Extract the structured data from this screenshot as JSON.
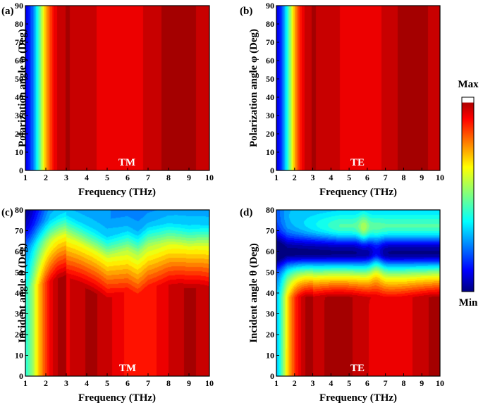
{
  "chart_data": [
    {
      "type": "heatmap",
      "panel_label": "(a)",
      "mode": "TM",
      "xlabel": "Frequency (THz)",
      "ylabel": "Polarization angle φ (Deg)",
      "xlim": [
        1,
        10
      ],
      "ylim": [
        0,
        90
      ],
      "xticks": [
        "1",
        "2",
        "3",
        "4",
        "5",
        "6",
        "7",
        "8",
        "9",
        "10"
      ],
      "yticks": [
        "0",
        "10",
        "20",
        "30",
        "40",
        "50",
        "60",
        "70",
        "80",
        "90"
      ],
      "field": "uniform_in_angle",
      "profile_x": [
        1.0,
        1.2,
        1.4,
        1.6,
        1.8,
        2.0,
        2.2,
        2.4,
        2.6,
        3.0,
        3.5,
        4.0,
        4.5,
        5.0,
        5.5,
        6.0,
        6.5,
        7.0,
        7.5,
        8.0,
        8.5,
        9.0,
        9.5,
        10.0
      ],
      "profile_value": [
        0.1,
        0.15,
        0.25,
        0.4,
        0.55,
        0.7,
        0.8,
        0.88,
        0.92,
        0.95,
        0.94,
        0.93,
        0.91,
        0.89,
        0.88,
        0.89,
        0.9,
        0.92,
        0.94,
        0.96,
        0.97,
        0.96,
        0.94,
        0.92
      ]
    },
    {
      "type": "heatmap",
      "panel_label": "(b)",
      "mode": "TE",
      "xlabel": "Frequency (THz)",
      "ylabel": "Polarization angle φ (Deg)",
      "xlim": [
        1,
        10
      ],
      "ylim": [
        0,
        90
      ],
      "xticks": [
        "1",
        "2",
        "3",
        "4",
        "5",
        "6",
        "7",
        "8",
        "9",
        "10"
      ],
      "yticks": [
        "0",
        "10",
        "20",
        "30",
        "40",
        "50",
        "60",
        "70",
        "80",
        "90"
      ],
      "field": "uniform_in_angle",
      "profile_x": [
        1.0,
        1.2,
        1.4,
        1.6,
        1.8,
        2.0,
        2.2,
        2.4,
        2.6,
        3.0,
        3.5,
        4.0,
        4.5,
        5.0,
        5.5,
        6.0,
        6.5,
        7.0,
        7.5,
        8.0,
        8.5,
        9.0,
        9.5,
        10.0
      ],
      "profile_value": [
        0.1,
        0.15,
        0.25,
        0.4,
        0.55,
        0.7,
        0.8,
        0.88,
        0.92,
        0.95,
        0.94,
        0.93,
        0.91,
        0.89,
        0.88,
        0.89,
        0.9,
        0.92,
        0.94,
        0.96,
        0.97,
        0.96,
        0.94,
        0.92
      ]
    },
    {
      "type": "heatmap",
      "panel_label": "(c)",
      "mode": "TM",
      "xlabel": "Frequency (THz)",
      "ylabel": "Incident angle θ (Deg)",
      "xlim": [
        1,
        10
      ],
      "ylim": [
        0,
        80
      ],
      "xticks": [
        "1",
        "2",
        "3",
        "4",
        "5",
        "6",
        "7",
        "8",
        "9",
        "10"
      ],
      "yticks": [
        "0",
        "10",
        "20",
        "30",
        "40",
        "50",
        "60",
        "70",
        "80"
      ],
      "field": "tm_incidence",
      "low_frequency_profile_x": [
        1.0,
        1.2,
        1.4,
        1.6,
        1.8,
        2.0,
        2.2,
        2.4,
        2.6,
        3.0
      ],
      "low_frequency_profile_value": [
        0.4,
        0.46,
        0.55,
        0.65,
        0.74,
        0.82,
        0.88,
        0.92,
        0.95,
        0.96
      ],
      "decay_angle_x": [
        1,
        2,
        3,
        4,
        5,
        6,
        6.5,
        7,
        8,
        9,
        10
      ],
      "decay_angle_value": [
        62,
        65,
        68,
        62,
        57,
        61,
        59,
        63,
        64,
        62,
        63
      ]
    },
    {
      "type": "heatmap",
      "panel_label": "(d)",
      "mode": "TE",
      "xlabel": "Frequency (THz)",
      "ylabel": "Incident angle θ (Deg)",
      "xlim": [
        1,
        10
      ],
      "ylim": [
        0,
        80
      ],
      "xticks": [
        "1",
        "2",
        "3",
        "4",
        "5",
        "6",
        "7",
        "8",
        "9",
        "10"
      ],
      "yticks": [
        "0",
        "10",
        "20",
        "30",
        "40",
        "50",
        "60",
        "70",
        "80"
      ],
      "field": "te_incidence",
      "min_band_angle": 60,
      "high_band_angle": 71,
      "low_frequency_profile_x": [
        1.0,
        1.2,
        1.4,
        1.6,
        1.8,
        2.0,
        2.2,
        2.4,
        2.6,
        3.0
      ],
      "low_frequency_profile_value": [
        0.4,
        0.46,
        0.55,
        0.65,
        0.74,
        0.82,
        0.88,
        0.92,
        0.95,
        0.96
      ]
    }
  ],
  "colorbar": {
    "max_label": "Max",
    "min_label": "Min",
    "colormap": "jet"
  }
}
